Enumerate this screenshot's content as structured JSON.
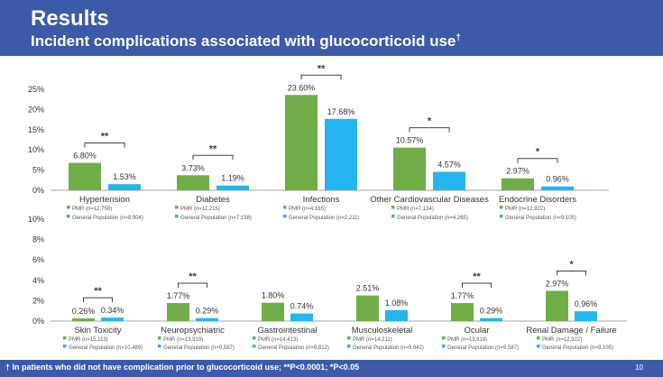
{
  "header": {
    "title": "Results",
    "subtitle": "Incident complications associated with glucocorticoid use",
    "subtitle_mark": "†"
  },
  "footer": {
    "note": "† In patients who did not have complication prior to glucocorticoid use; **P<0.0001; *P<0.05",
    "page_number": "10"
  },
  "colors": {
    "pmr": "#70ad47",
    "general": "#24b5f0",
    "axis": "#a6a6a6",
    "text": "#333333"
  },
  "chart_data": [
    {
      "type": "bar",
      "series_names": [
        "PMR",
        "General Population"
      ],
      "ylim": [
        0,
        25
      ],
      "yticks": [
        "0%",
        "5%",
        "10%",
        "15%",
        "20%",
        "25%"
      ],
      "categories": [
        "Hypertension",
        "Diabetes",
        "Infections",
        "Other Cardiovascular Diseases",
        "Endocrine Disorders"
      ],
      "series": [
        {
          "name": "PMR",
          "values": [
            6.8,
            3.73,
            23.6,
            10.57,
            2.97
          ],
          "labels": [
            "6.80%",
            "3.73%",
            "23.60%",
            "10.57%",
            "2.97%"
          ],
          "n": [
            "PMR (n=12,758)",
            "PMR (n=11,215)",
            "PMR (n=4,165)",
            "PMR (n=7,134)",
            "PMR (n=12,922)"
          ]
        },
        {
          "name": "General Population",
          "values": [
            1.53,
            1.19,
            17.68,
            4.57,
            0.96
          ],
          "labels": [
            "1.53%",
            "1.19%",
            "17.68%",
            "4.57%",
            "0.96%"
          ],
          "n": [
            "General Population (n=8,904)",
            "General Population (n=7,158)",
            "General Population (n=2,211)",
            "General Population (n=4,265)",
            "General Population (n=9,105)"
          ]
        }
      ],
      "significance": [
        "**",
        "**",
        "**",
        "*",
        "*"
      ]
    },
    {
      "type": "bar",
      "series_names": [
        "PMR",
        "General Population"
      ],
      "ylim": [
        0,
        10
      ],
      "yticks": [
        "0%",
        "2%",
        "4%",
        "6%",
        "8%",
        "10%"
      ],
      "categories": [
        "Skin Toxicity",
        "Neuropsychiatric",
        "Gastrointestinal",
        "Musculoskeletal",
        "Ocular",
        "Renal Damage / Failure"
      ],
      "series": [
        {
          "name": "PMR",
          "values": [
            0.26,
            1.77,
            1.8,
            2.51,
            1.77,
            2.97
          ],
          "labels": [
            "0.26%",
            "1.77%",
            "1.80%",
            "2.51%",
            "1.77%",
            "2.97%"
          ],
          "n": [
            "PMR (n=15,113)",
            "PMR (n=13,919)",
            "PMR (n=14,413)",
            "PMR (n=14,211)",
            "PMR (n=13,919)",
            "PMR (n=12,922)"
          ]
        },
        {
          "name": "General Population",
          "values": [
            0.34,
            0.29,
            0.74,
            1.08,
            0.29,
            0.96
          ],
          "labels": [
            "0.34%",
            "0.29%",
            "0.74%",
            "1.08%",
            "0.29%",
            "0.96%"
          ],
          "n": [
            "General Population (n=10,489)",
            "General Population (n=9,587)",
            "General Population (n=9,812)",
            "General Population (n=9,642)",
            "General Population (n=9,587)",
            "General Population (n=9,105)"
          ]
        }
      ],
      "significance": [
        "**",
        "**",
        "",
        "",
        "**",
        "*"
      ]
    }
  ]
}
